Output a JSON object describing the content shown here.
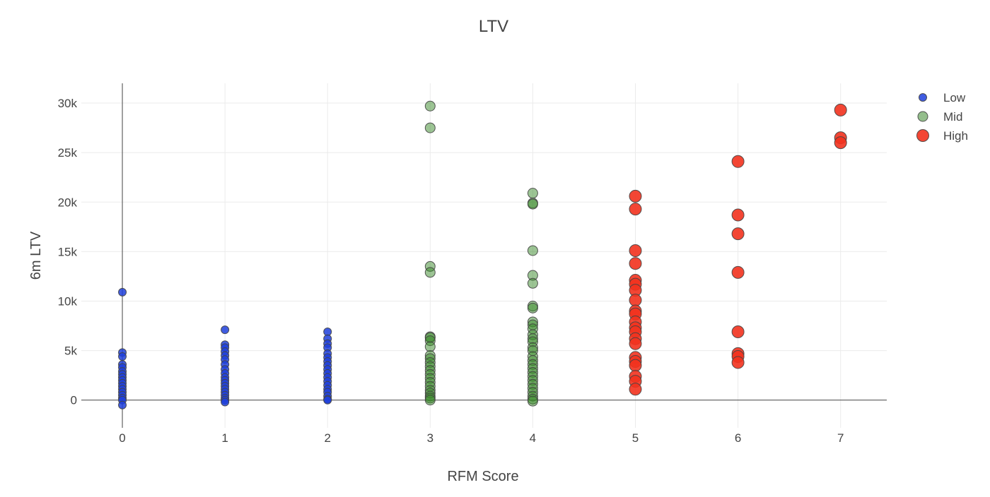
{
  "chart_data": {
    "type": "scatter",
    "title": "LTV",
    "xlabel": "RFM Score",
    "ylabel": "6m LTV",
    "xlim": [
      -0.4,
      7.45
    ],
    "ylim": [
      -2800,
      32000
    ],
    "xticks": [
      {
        "v": 0,
        "label": "0"
      },
      {
        "v": 1,
        "label": "1"
      },
      {
        "v": 2,
        "label": "2"
      },
      {
        "v": 3,
        "label": "3"
      },
      {
        "v": 4,
        "label": "4"
      },
      {
        "v": 5,
        "label": "5"
      },
      {
        "v": 6,
        "label": "6"
      },
      {
        "v": 7,
        "label": "7"
      }
    ],
    "yticks": [
      {
        "v": 0,
        "label": "0"
      },
      {
        "v": 5000,
        "label": "5k"
      },
      {
        "v": 10000,
        "label": "10k"
      },
      {
        "v": 15000,
        "label": "15k"
      },
      {
        "v": 20000,
        "label": "20k"
      },
      {
        "v": 25000,
        "label": "25k"
      },
      {
        "v": 30000,
        "label": "30k"
      }
    ],
    "grid": true,
    "legend_position": "top-right",
    "series": [
      {
        "name": "Low",
        "color": "#1f3fdc",
        "opacity": 0.85,
        "marker_size": "small",
        "points": [
          [
            0,
            10900
          ],
          [
            0,
            4800
          ],
          [
            0,
            4400
          ],
          [
            0,
            3600
          ],
          [
            0,
            3300
          ],
          [
            0,
            2900
          ],
          [
            0,
            2600
          ],
          [
            0,
            2300
          ],
          [
            0,
            2000
          ],
          [
            0,
            1700
          ],
          [
            0,
            1400
          ],
          [
            0,
            1100
          ],
          [
            0,
            800
          ],
          [
            0,
            500
          ],
          [
            0,
            200
          ],
          [
            0,
            0
          ],
          [
            0,
            -500
          ],
          [
            1,
            7100
          ],
          [
            1,
            5600
          ],
          [
            1,
            5300
          ],
          [
            1,
            4900
          ],
          [
            1,
            4500
          ],
          [
            1,
            4100
          ],
          [
            1,
            3600
          ],
          [
            1,
            3100
          ],
          [
            1,
            2700
          ],
          [
            1,
            2300
          ],
          [
            1,
            2000
          ],
          [
            1,
            1700
          ],
          [
            1,
            1400
          ],
          [
            1,
            1100
          ],
          [
            1,
            800
          ],
          [
            1,
            500
          ],
          [
            1,
            200
          ],
          [
            1,
            0
          ],
          [
            1,
            -200
          ],
          [
            2,
            6900
          ],
          [
            2,
            6200
          ],
          [
            2,
            5700
          ],
          [
            2,
            5300
          ],
          [
            2,
            4700
          ],
          [
            2,
            4300
          ],
          [
            2,
            3900
          ],
          [
            2,
            3500
          ],
          [
            2,
            3100
          ],
          [
            2,
            2700
          ],
          [
            2,
            2300
          ],
          [
            2,
            1900
          ],
          [
            2,
            1500
          ],
          [
            2,
            1100
          ],
          [
            2,
            800
          ],
          [
            2,
            400
          ],
          [
            2,
            100
          ],
          [
            2,
            0
          ]
        ]
      },
      {
        "name": "Mid",
        "color": "#3a8a2a",
        "legend_color": "#94be8c",
        "opacity": 0.5,
        "marker_size": "medium",
        "points": [
          [
            3,
            29700
          ],
          [
            3,
            27500
          ],
          [
            3,
            13500
          ],
          [
            3,
            12900
          ],
          [
            3,
            6400
          ],
          [
            3,
            6300
          ],
          [
            3,
            6000
          ],
          [
            3,
            5400
          ],
          [
            3,
            4500
          ],
          [
            3,
            4200
          ],
          [
            3,
            3800
          ],
          [
            3,
            3400
          ],
          [
            3,
            3000
          ],
          [
            3,
            2600
          ],
          [
            3,
            2200
          ],
          [
            3,
            1800
          ],
          [
            3,
            1400
          ],
          [
            3,
            1000
          ],
          [
            3,
            700
          ],
          [
            3,
            400
          ],
          [
            3,
            200
          ],
          [
            3,
            0
          ],
          [
            4,
            20900
          ],
          [
            4,
            19900
          ],
          [
            4,
            19800
          ],
          [
            4,
            15100
          ],
          [
            4,
            12600
          ],
          [
            4,
            11800
          ],
          [
            4,
            9500
          ],
          [
            4,
            9300
          ],
          [
            4,
            7900
          ],
          [
            4,
            7600
          ],
          [
            4,
            7200
          ],
          [
            4,
            6600
          ],
          [
            4,
            6200
          ],
          [
            4,
            5900
          ],
          [
            4,
            5300
          ],
          [
            4,
            5000
          ],
          [
            4,
            4400
          ],
          [
            4,
            4000
          ],
          [
            4,
            3600
          ],
          [
            4,
            3200
          ],
          [
            4,
            2800
          ],
          [
            4,
            2400
          ],
          [
            4,
            2000
          ],
          [
            4,
            1600
          ],
          [
            4,
            1200
          ],
          [
            4,
            800
          ],
          [
            4,
            400
          ],
          [
            4,
            100
          ],
          [
            4,
            -100
          ]
        ]
      },
      {
        "name": "High",
        "color": "#f2321e",
        "opacity": 0.9,
        "marker_size": "large",
        "points": [
          [
            5,
            20600
          ],
          [
            5,
            19300
          ],
          [
            5,
            15100
          ],
          [
            5,
            13800
          ],
          [
            5,
            12100
          ],
          [
            5,
            11700
          ],
          [
            5,
            11100
          ],
          [
            5,
            10100
          ],
          [
            5,
            9000
          ],
          [
            5,
            8700
          ],
          [
            5,
            7900
          ],
          [
            5,
            7300
          ],
          [
            5,
            6900
          ],
          [
            5,
            6200
          ],
          [
            5,
            5700
          ],
          [
            5,
            4300
          ],
          [
            5,
            3900
          ],
          [
            5,
            3500
          ],
          [
            5,
            2400
          ],
          [
            5,
            1900
          ],
          [
            5,
            1100
          ],
          [
            6,
            24100
          ],
          [
            6,
            18700
          ],
          [
            6,
            16800
          ],
          [
            6,
            12900
          ],
          [
            6,
            6900
          ],
          [
            6,
            4700
          ],
          [
            6,
            4400
          ],
          [
            6,
            3800
          ],
          [
            7,
            29300
          ],
          [
            7,
            26500
          ],
          [
            7,
            26000
          ]
        ]
      }
    ]
  }
}
